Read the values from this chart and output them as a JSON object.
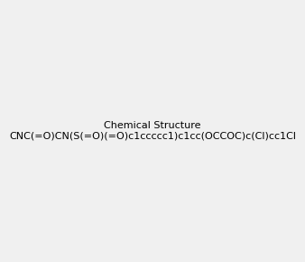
{
  "smiles": "CNC(=O)CN(S(=O)(=O)c1ccccc1)c1cc(OCC OC)c(Cl)cc1Cl",
  "smiles_correct": "CNC(=O)CN(S(=O)(=O)c1ccccc1)c1cc(OCCOC)c(Cl)cc1Cl",
  "background_color": "#f0f0f0",
  "image_size": 300,
  "title": ""
}
